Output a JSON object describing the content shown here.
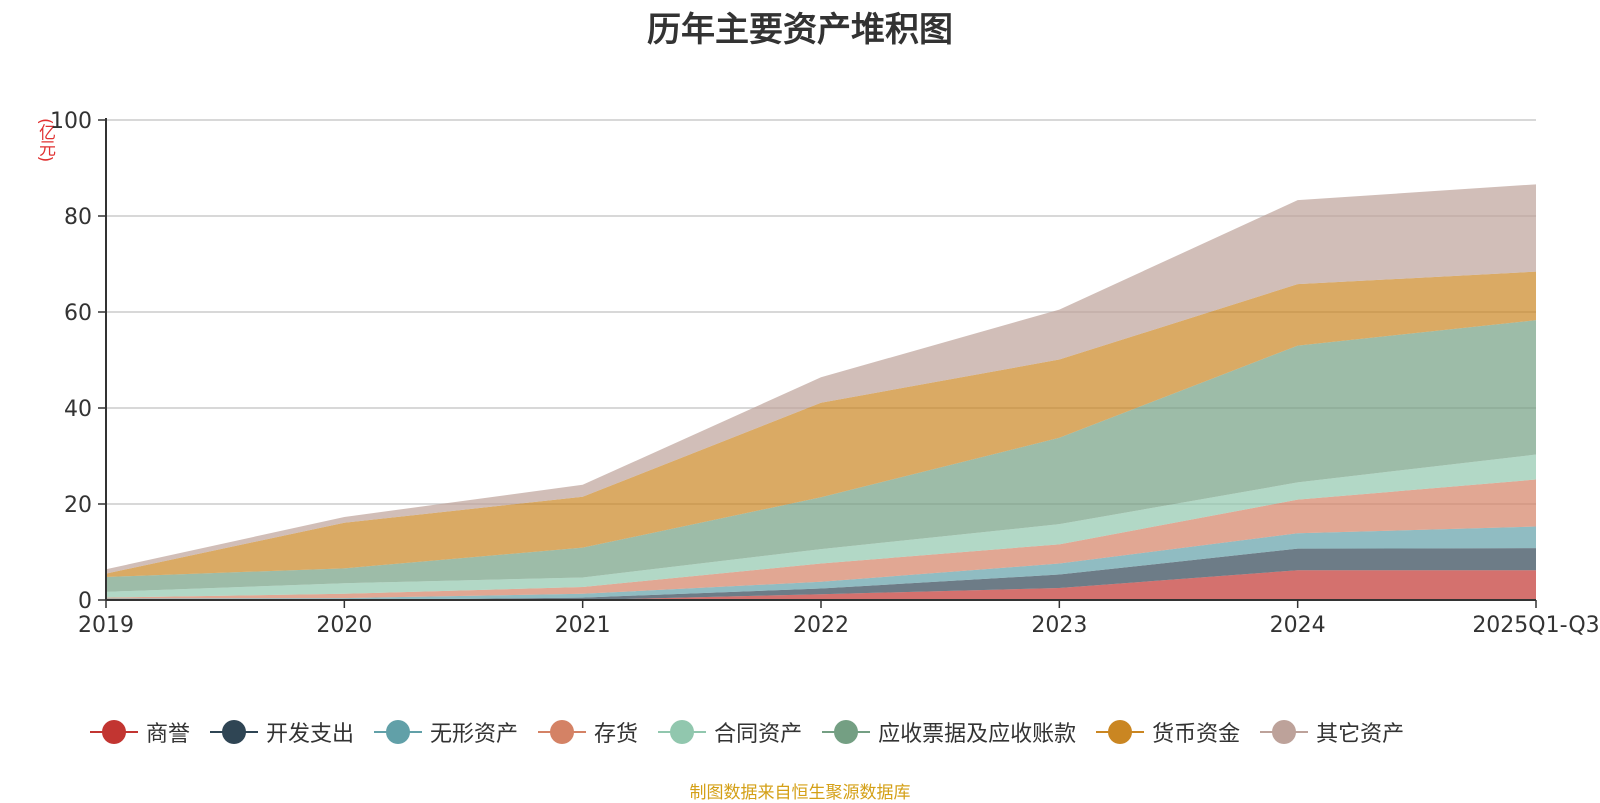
{
  "chart_data": {
    "type": "area",
    "stacked": true,
    "title": "历年主要资产堆积图",
    "ylabel": "(亿元)",
    "xlabel": "",
    "categories": [
      "2019",
      "2020",
      "2021",
      "2022",
      "2023",
      "2024",
      "2025Q1-Q3"
    ],
    "ylim": [
      0,
      100
    ],
    "yticks": [
      0,
      20,
      40,
      60,
      80,
      100
    ],
    "grid": true,
    "legend_position": "bottom",
    "series": [
      {
        "name": "商誉",
        "color": "#c23531",
        "values": [
          0,
          0,
          0,
          1.2,
          2.5,
          6.2,
          6.2
        ]
      },
      {
        "name": "开发支出",
        "color": "#2f4554",
        "values": [
          0,
          0,
          0.5,
          1.2,
          2.8,
          4.5,
          4.6
        ]
      },
      {
        "name": "无形资产",
        "color": "#61a0a8",
        "values": [
          0.3,
          0.4,
          0.8,
          1.4,
          2.3,
          3.2,
          4.5
        ]
      },
      {
        "name": "存货",
        "color": "#d48265",
        "values": [
          0.2,
          0.9,
          1.4,
          3.8,
          4.0,
          7.0,
          9.8
        ]
      },
      {
        "name": "合同资产",
        "color": "#91c7ae",
        "values": [
          1.2,
          2.2,
          2.0,
          3.0,
          4.2,
          3.6,
          5.2
        ]
      },
      {
        "name": "应收票据及应收账款",
        "color": "#749f83",
        "values": [
          3.1,
          3.1,
          6.2,
          10.8,
          18.0,
          28.5,
          28.0
        ]
      },
      {
        "name": "货币资金",
        "color": "#ca8622",
        "values": [
          0.7,
          9.5,
          10.6,
          19.7,
          16.3,
          12.8,
          10.1
        ]
      },
      {
        "name": "其它资产",
        "color": "#bda29a",
        "values": [
          0.9,
          1.2,
          2.5,
          5.3,
          10.4,
          17.5,
          18.2
        ]
      }
    ]
  },
  "source_text": "制图数据来自恒生聚源数据库"
}
